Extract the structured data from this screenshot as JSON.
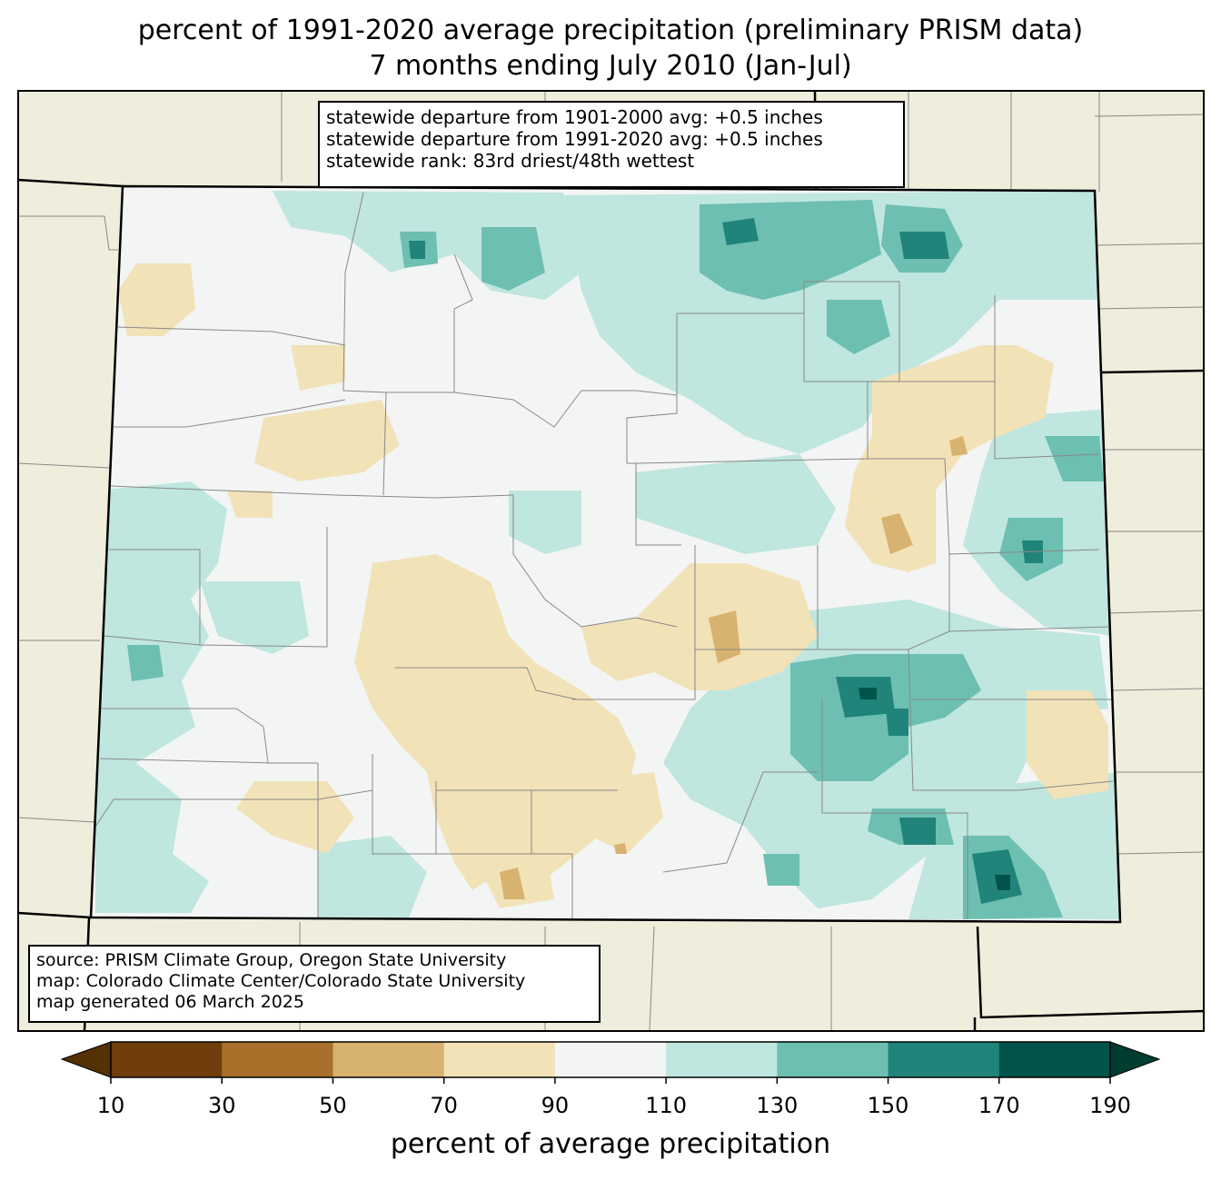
{
  "title": {
    "line1": "percent of 1991-2020 average precipitation (preliminary PRISM data)",
    "line2": "7 months ending July 2010 (Jan-Jul)"
  },
  "stats_box": {
    "line1": "statewide departure from 1901-2000 avg: +0.5 inches",
    "line2": "statewide departure from 1991-2020 avg: +0.5 inches",
    "line3": "statewide rank: 83rd driest/48th wettest"
  },
  "source_box": {
    "line1": "source: PRISM Climate Group, Oregon State University",
    "line2": "map: Colorado Climate Center/Colorado State University",
    "line3": "map generated 06 March 2025"
  },
  "colorbar": {
    "label": "percent of average precipitation",
    "ticks": [
      "10",
      "30",
      "50",
      "70",
      "90",
      "110",
      "130",
      "150",
      "170",
      "190"
    ],
    "colors": [
      "#6f3e0c",
      "#a8702a",
      "#d8b26f",
      "#f2e2b8",
      "#f3f5f4",
      "#bfe6df",
      "#6dbfb1",
      "#21847a",
      "#01544a"
    ],
    "under_color": "#543005",
    "over_color": "#003c30"
  },
  "map_colors": {
    "background_states": "#efeedc",
    "state_border": "#000000",
    "county_border": "#888888"
  }
}
